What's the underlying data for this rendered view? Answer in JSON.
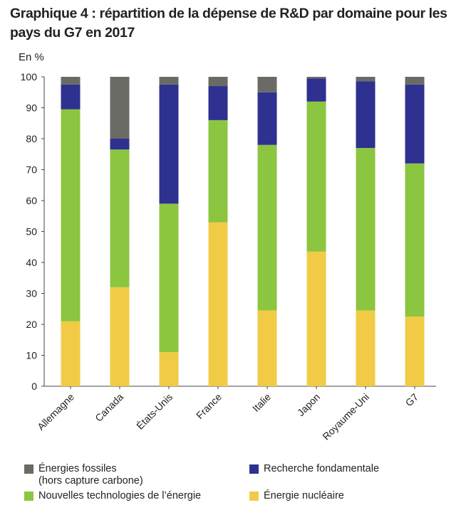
{
  "title": "Graphique 4 : répartition de la dépense de R&D par domaine pour les pays du G7 en 2017",
  "unit_label": "En %",
  "chart_data": {
    "type": "bar",
    "stacked": true,
    "categories": [
      "Allemagne",
      "Canada",
      "États-Unis",
      "France",
      "Italie",
      "Japon",
      "Royaume-Uni",
      "G7"
    ],
    "ylim": [
      0,
      100
    ],
    "yticks": [
      0,
      10,
      20,
      30,
      40,
      50,
      60,
      70,
      80,
      90,
      100
    ],
    "grid": false,
    "legend_position": "bottom",
    "series": [
      {
        "name": "Énergie nucléaire",
        "color": "#f1cb45",
        "values": [
          21,
          32,
          11,
          53,
          24.5,
          43.5,
          24.5,
          22.5
        ]
      },
      {
        "name": "Nouvelles technologies de l’énergie",
        "color": "#8cc540",
        "values": [
          68.5,
          44.5,
          48,
          33,
          53.5,
          48.5,
          52.5,
          49.5
        ]
      },
      {
        "name": "Recherche fondamentale",
        "color": "#2e318f",
        "values": [
          8,
          3.5,
          38.5,
          11,
          17,
          7.5,
          21.5,
          25.5
        ]
      },
      {
        "name": "Énergies fossiles\n(hors capture carbone)",
        "color": "#6b6b66",
        "values": [
          2.5,
          20,
          2.5,
          3,
          5,
          0.5,
          1.5,
          2.5
        ]
      }
    ]
  },
  "legend": {
    "fossiles": "Énergies fossiles\n(hors capture carbone)",
    "recherche": "Recherche fondamentale",
    "nouvelles": "Nouvelles technologies de l’énergie",
    "nucleaire": "Énergie nucléaire"
  }
}
